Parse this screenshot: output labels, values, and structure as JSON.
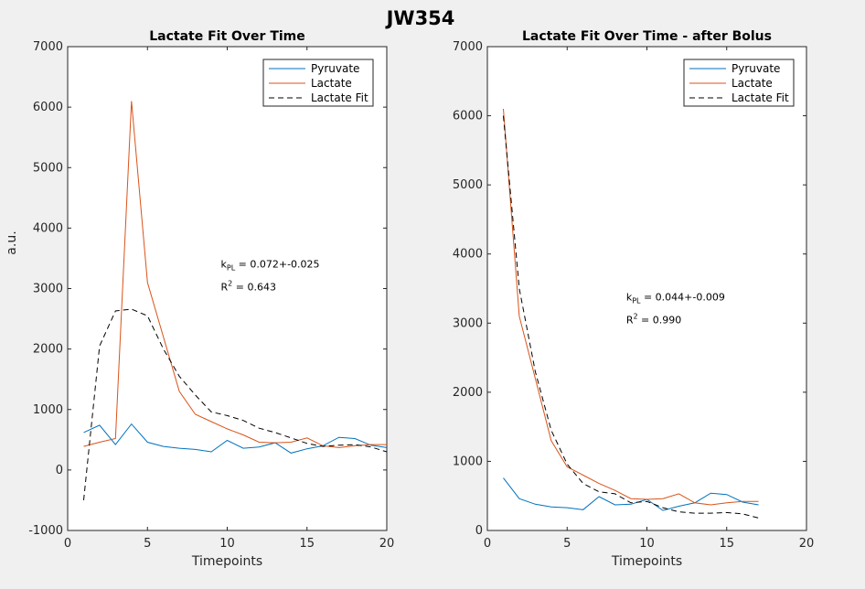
{
  "figure": {
    "suptitle": "JW354"
  },
  "colors": {
    "pyruvate": "#0072BD",
    "lactate": "#D95319",
    "fit": "#000000",
    "background": "#f0f0f0",
    "axes": "#ffffff"
  },
  "chart_data": [
    {
      "type": "line",
      "title": "Lactate Fit Over Time",
      "xlabel": "Timepoints",
      "ylabel": "a.u.",
      "xlim": [
        0,
        20
      ],
      "ylim": [
        -1000,
        7000
      ],
      "xticks": [
        0,
        5,
        10,
        15,
        20
      ],
      "yticks": [
        -1000,
        0,
        1000,
        2000,
        3000,
        4000,
        5000,
        6000,
        7000
      ],
      "grid": false,
      "legend": "top-right",
      "annotation": {
        "k_label": "k",
        "k_sub": "PL",
        "k_value": " = 0.072+-0.025",
        "r_label": "R",
        "r_sup": "2",
        "r_value": " = 0.643",
        "x": 9.6,
        "y": 3350
      },
      "series": [
        {
          "name": "Pyruvate",
          "style": "solid",
          "color": "#0072BD",
          "x": [
            1,
            2,
            3,
            4,
            5,
            6,
            7,
            8,
            9,
            10,
            11,
            12,
            13,
            14,
            15,
            16,
            17,
            18,
            19,
            20
          ],
          "y": [
            620,
            740,
            420,
            760,
            460,
            390,
            360,
            340,
            300,
            490,
            360,
            380,
            450,
            280,
            350,
            400,
            540,
            520,
            410,
            370
          ]
        },
        {
          "name": "Lactate",
          "style": "solid",
          "color": "#D95319",
          "x": [
            1,
            2,
            3,
            4,
            5,
            6,
            7,
            8,
            9,
            10,
            11,
            12,
            13,
            14,
            15,
            16,
            17,
            18,
            19,
            20
          ],
          "y": [
            390,
            460,
            520,
            6100,
            3100,
            2200,
            1300,
            920,
            800,
            680,
            580,
            460,
            450,
            460,
            530,
            400,
            370,
            400,
            420,
            420
          ]
        },
        {
          "name": "Lactate Fit",
          "style": "dashed",
          "color": "#000000",
          "x": [
            1,
            2,
            3,
            4,
            5,
            6,
            7,
            8,
            9,
            10,
            11,
            12,
            13,
            14,
            15,
            16,
            17,
            18,
            19,
            20
          ],
          "y": [
            -500,
            2050,
            2630,
            2660,
            2550,
            2000,
            1550,
            1240,
            960,
            900,
            820,
            690,
            620,
            530,
            440,
            390,
            410,
            420,
            380,
            300
          ]
        }
      ]
    },
    {
      "type": "line",
      "title": "Lactate Fit Over Time - after Bolus",
      "xlabel": "Timepoints",
      "ylabel": "",
      "xlim": [
        0,
        20
      ],
      "ylim": [
        0,
        7000
      ],
      "xticks": [
        0,
        5,
        10,
        15,
        20
      ],
      "yticks": [
        0,
        1000,
        2000,
        3000,
        4000,
        5000,
        6000,
        7000
      ],
      "grid": false,
      "legend": "top-right",
      "annotation": {
        "k_label": "k",
        "k_sub": "PL",
        "k_value": " = 0.044+-0.009",
        "r_label": "R",
        "r_sup": "2",
        "r_value": " = 0.990",
        "x": 8.7,
        "y": 3330
      },
      "series": [
        {
          "name": "Pyruvate",
          "style": "solid",
          "color": "#0072BD",
          "x": [
            1,
            2,
            3,
            4,
            5,
            6,
            7,
            8,
            9,
            10,
            11,
            12,
            13,
            14,
            15,
            16,
            17
          ],
          "y": [
            760,
            460,
            380,
            340,
            330,
            300,
            490,
            370,
            380,
            450,
            290,
            350,
            400,
            540,
            520,
            410,
            370
          ]
        },
        {
          "name": "Lactate",
          "style": "solid",
          "color": "#D95319",
          "x": [
            1,
            2,
            3,
            4,
            5,
            6,
            7,
            8,
            9,
            10,
            11,
            12,
            13,
            14,
            15,
            16,
            17
          ],
          "y": [
            6100,
            3100,
            2200,
            1300,
            920,
            800,
            680,
            580,
            460,
            450,
            460,
            530,
            400,
            370,
            400,
            420,
            420
          ]
        },
        {
          "name": "Lactate Fit",
          "style": "dashed",
          "color": "#000000",
          "x": [
            1,
            2,
            3,
            4,
            5,
            6,
            7,
            8,
            9,
            10,
            11,
            12,
            13,
            14,
            15,
            16,
            17
          ],
          "y": [
            6000,
            3500,
            2300,
            1450,
            960,
            680,
            560,
            530,
            400,
            420,
            330,
            270,
            250,
            250,
            260,
            240,
            180
          ]
        }
      ]
    }
  ]
}
